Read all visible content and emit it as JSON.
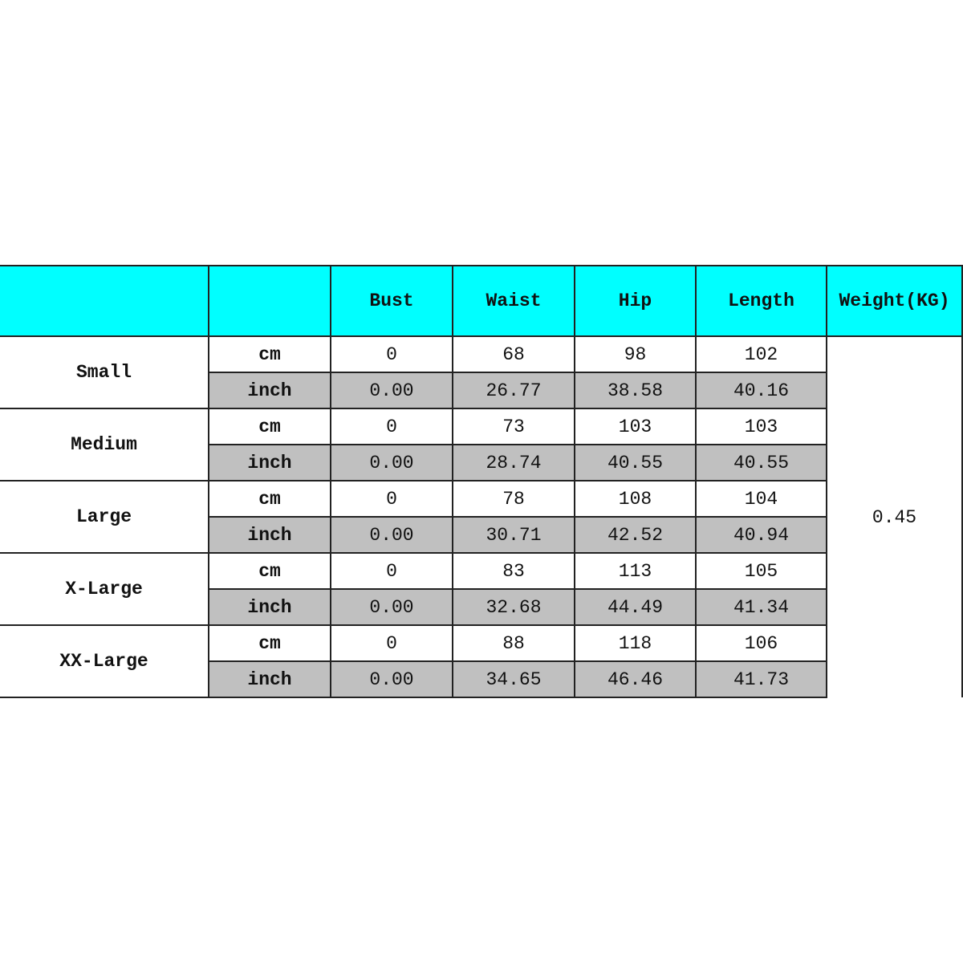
{
  "header": {
    "size": "",
    "unit": "",
    "columns": [
      "Bust",
      "Waist",
      "Hip",
      "Length",
      "Weight(KG)"
    ]
  },
  "colors": {
    "header_bg": "#00ffff",
    "inch_row_bg": "#c0c0c0"
  },
  "weight": "0.45",
  "rows": [
    {
      "size": "Small",
      "cm": {
        "unit": "cm",
        "values": [
          "0",
          "68",
          "98",
          "102"
        ]
      },
      "inch": {
        "unit": "inch",
        "values": [
          "0.00",
          "26.77",
          "38.58",
          "40.16"
        ]
      }
    },
    {
      "size": "Medium",
      "cm": {
        "unit": "cm",
        "values": [
          "0",
          "73",
          "103",
          "103"
        ]
      },
      "inch": {
        "unit": "inch",
        "values": [
          "0.00",
          "28.74",
          "40.55",
          "40.55"
        ]
      }
    },
    {
      "size": "Large",
      "cm": {
        "unit": "cm",
        "values": [
          "0",
          "78",
          "108",
          "104"
        ]
      },
      "inch": {
        "unit": "inch",
        "values": [
          "0.00",
          "30.71",
          "42.52",
          "40.94"
        ]
      }
    },
    {
      "size": "X-Large",
      "cm": {
        "unit": "cm",
        "values": [
          "0",
          "83",
          "113",
          "105"
        ]
      },
      "inch": {
        "unit": "inch",
        "values": [
          "0.00",
          "32.68",
          "44.49",
          "41.34"
        ]
      }
    },
    {
      "size": "XX-Large",
      "cm": {
        "unit": "cm",
        "values": [
          "0",
          "88",
          "118",
          "106"
        ]
      },
      "inch": {
        "unit": "inch",
        "values": [
          "0.00",
          "34.65",
          "46.46",
          "41.73"
        ]
      }
    }
  ]
}
